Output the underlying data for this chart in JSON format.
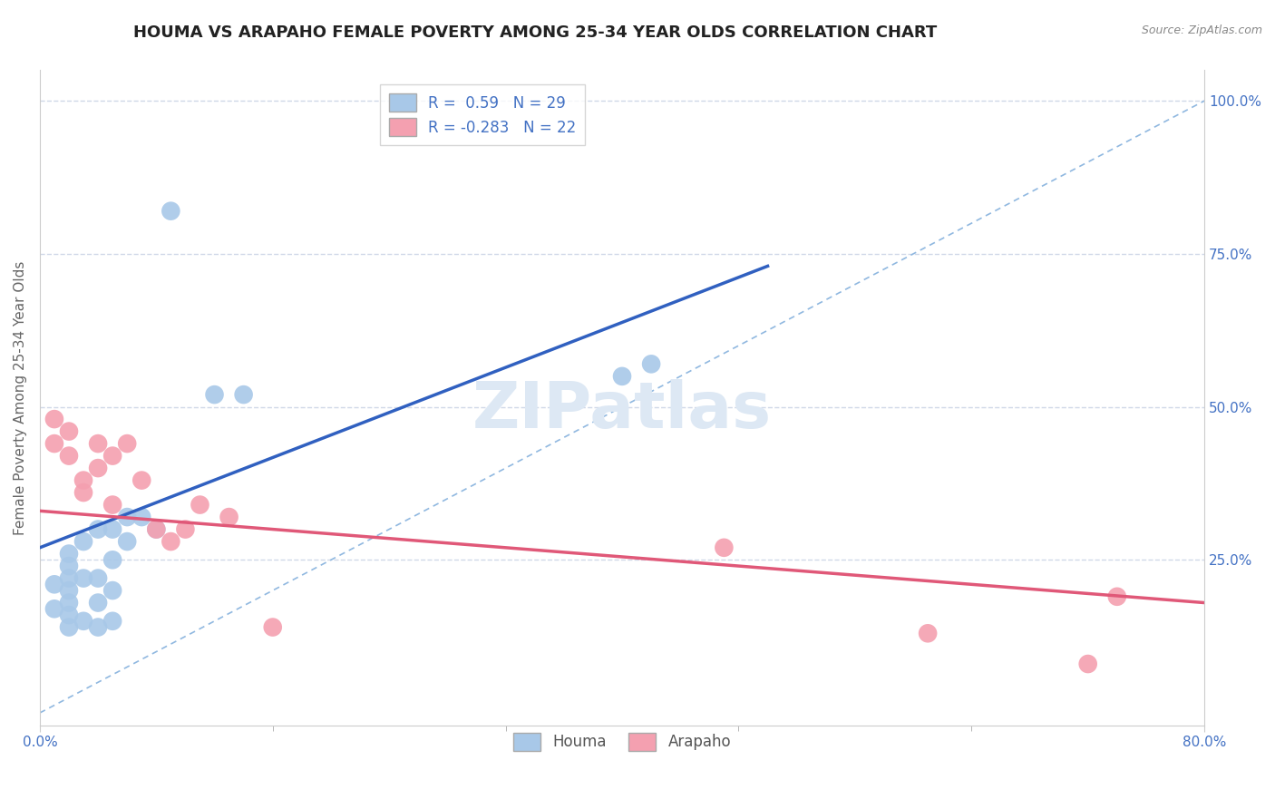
{
  "title": "HOUMA VS ARAPAHO FEMALE POVERTY AMONG 25-34 YEAR OLDS CORRELATION CHART",
  "source": "Source: ZipAtlas.com",
  "ylabel": "Female Poverty Among 25-34 Year Olds",
  "xlim": [
    0.0,
    0.8
  ],
  "ylim": [
    -0.02,
    1.05
  ],
  "houma_R": 0.59,
  "houma_N": 29,
  "arapaho_R": -0.283,
  "arapaho_N": 22,
  "houma_color": "#a8c8e8",
  "arapaho_color": "#f4a0b0",
  "houma_line_color": "#3060c0",
  "arapaho_line_color": "#e05878",
  "diagonal_line_color": "#90b8e0",
  "background_color": "#ffffff",
  "grid_color": "#d0d8e8",
  "tick_color": "#4472c4",
  "houma_x": [
    0.01,
    0.01,
    0.02,
    0.02,
    0.02,
    0.02,
    0.02,
    0.02,
    0.02,
    0.03,
    0.03,
    0.03,
    0.04,
    0.04,
    0.04,
    0.04,
    0.05,
    0.05,
    0.05,
    0.05,
    0.06,
    0.06,
    0.07,
    0.08,
    0.09,
    0.12,
    0.14,
    0.4,
    0.42
  ],
  "houma_y": [
    0.17,
    0.21,
    0.14,
    0.16,
    0.18,
    0.2,
    0.22,
    0.24,
    0.26,
    0.15,
    0.22,
    0.28,
    0.14,
    0.18,
    0.22,
    0.3,
    0.15,
    0.2,
    0.25,
    0.3,
    0.32,
    0.28,
    0.32,
    0.3,
    0.82,
    0.52,
    0.52,
    0.55,
    0.57
  ],
  "arapaho_x": [
    0.01,
    0.01,
    0.02,
    0.02,
    0.03,
    0.03,
    0.04,
    0.04,
    0.05,
    0.05,
    0.06,
    0.07,
    0.08,
    0.09,
    0.1,
    0.11,
    0.13,
    0.16,
    0.47,
    0.61,
    0.72,
    0.74
  ],
  "arapaho_y": [
    0.44,
    0.48,
    0.42,
    0.46,
    0.38,
    0.36,
    0.4,
    0.44,
    0.34,
    0.42,
    0.44,
    0.38,
    0.3,
    0.28,
    0.3,
    0.34,
    0.32,
    0.14,
    0.27,
    0.13,
    0.08,
    0.19
  ],
  "houma_line_x0": 0.0,
  "houma_line_y0": 0.27,
  "houma_line_x1": 0.5,
  "houma_line_y1": 0.73,
  "arapaho_line_x0": 0.0,
  "arapaho_line_y0": 0.33,
  "arapaho_line_x1": 0.8,
  "arapaho_line_y1": 0.18,
  "title_fontsize": 13,
  "axis_label_fontsize": 11,
  "tick_fontsize": 11,
  "legend_fontsize": 12,
  "watermark_text": "ZIPatlas",
  "watermark_color": "#dde8f4"
}
